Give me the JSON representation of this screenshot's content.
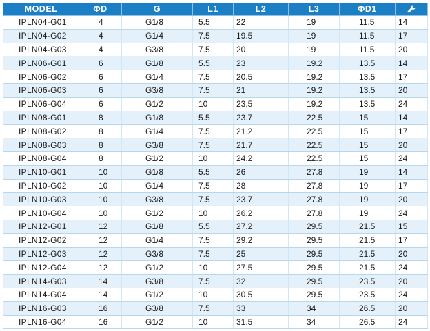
{
  "header": {
    "model": "MODEL",
    "d": "ΦD",
    "g": "G",
    "l1": "L1",
    "l2": "L2",
    "l3": "L3",
    "d1": "ΦD1",
    "wrench_icon": "wrench-icon"
  },
  "colors": {
    "header_bg": "#1b7fc6",
    "stripe_bg": "#e4f1fb"
  },
  "rows": [
    [
      "IPLN04-G01",
      "4",
      "G1/8",
      "5.5",
      "22",
      "19",
      "11.5",
      "14"
    ],
    [
      "IPLN04-G02",
      "4",
      "G1/4",
      "7.5",
      "19.5",
      "19",
      "11.5",
      "17"
    ],
    [
      "IPLN04-G03",
      "4",
      "G3/8",
      "7.5",
      "20",
      "19",
      "11.5",
      "20"
    ],
    [
      "IPLN06-G01",
      "6",
      "G1/8",
      "5.5",
      "23",
      "19.2",
      "13.5",
      "14"
    ],
    [
      "IPLN06-G02",
      "6",
      "G1/4",
      "7.5",
      "20.5",
      "19.2",
      "13.5",
      "17"
    ],
    [
      "IPLN06-G03",
      "6",
      "G3/8",
      "7.5",
      "21",
      "19.2",
      "13.5",
      "20"
    ],
    [
      "IPLN06-G04",
      "6",
      "G1/2",
      "10",
      "23.5",
      "19.2",
      "13.5",
      "24"
    ],
    [
      "IPLN08-G01",
      "8",
      "G1/8",
      "5.5",
      "23.7",
      "22.5",
      "15",
      "14"
    ],
    [
      "IPLN08-G02",
      "8",
      "G1/4",
      "7.5",
      "21.2",
      "22.5",
      "15",
      "17"
    ],
    [
      "IPLN08-G03",
      "8",
      "G3/8",
      "7.5",
      "21.7",
      "22.5",
      "15",
      "20"
    ],
    [
      "IPLN08-G04",
      "8",
      "G1/2",
      "10",
      "24.2",
      "22.5",
      "15",
      "24"
    ],
    [
      "IPLN10-G01",
      "10",
      "G1/8",
      "5.5",
      "26",
      "27.8",
      "19",
      "14"
    ],
    [
      "IPLN10-G02",
      "10",
      "G1/4",
      "7.5",
      "28",
      "27.8",
      "19",
      "17"
    ],
    [
      "IPLN10-G03",
      "10",
      "G3/8",
      "7.5",
      "23.7",
      "27.8",
      "19",
      "20"
    ],
    [
      "IPLN10-G04",
      "10",
      "G1/2",
      "10",
      "26.2",
      "27.8",
      "19",
      "24"
    ],
    [
      "IPLN12-G01",
      "12",
      "G1/8",
      "5.5",
      "27.2",
      "29.5",
      "21.5",
      "15"
    ],
    [
      "IPLN12-G02",
      "12",
      "G1/4",
      "7.5",
      "29.2",
      "29.5",
      "21.5",
      "17"
    ],
    [
      "IPLN12-G03",
      "12",
      "G3/8",
      "7.5",
      "25",
      "29.5",
      "21.5",
      "20"
    ],
    [
      "IPLN12-G04",
      "12",
      "G1/2",
      "10",
      "27.5",
      "29.5",
      "21.5",
      "24"
    ],
    [
      "IPLN14-G03",
      "14",
      "G3/8",
      "7.5",
      "32",
      "29.5",
      "23.5",
      "20"
    ],
    [
      "IPLN14-G04",
      "14",
      "G1/2",
      "10",
      "30.5",
      "29.5",
      "23.5",
      "24"
    ],
    [
      "IPLN16-G03",
      "16",
      "G3/8",
      "7.5",
      "33",
      "34",
      "26.5",
      "20"
    ],
    [
      "IPLN16-G04",
      "16",
      "G1/2",
      "10",
      "31.5",
      "34",
      "26.5",
      "24"
    ]
  ]
}
